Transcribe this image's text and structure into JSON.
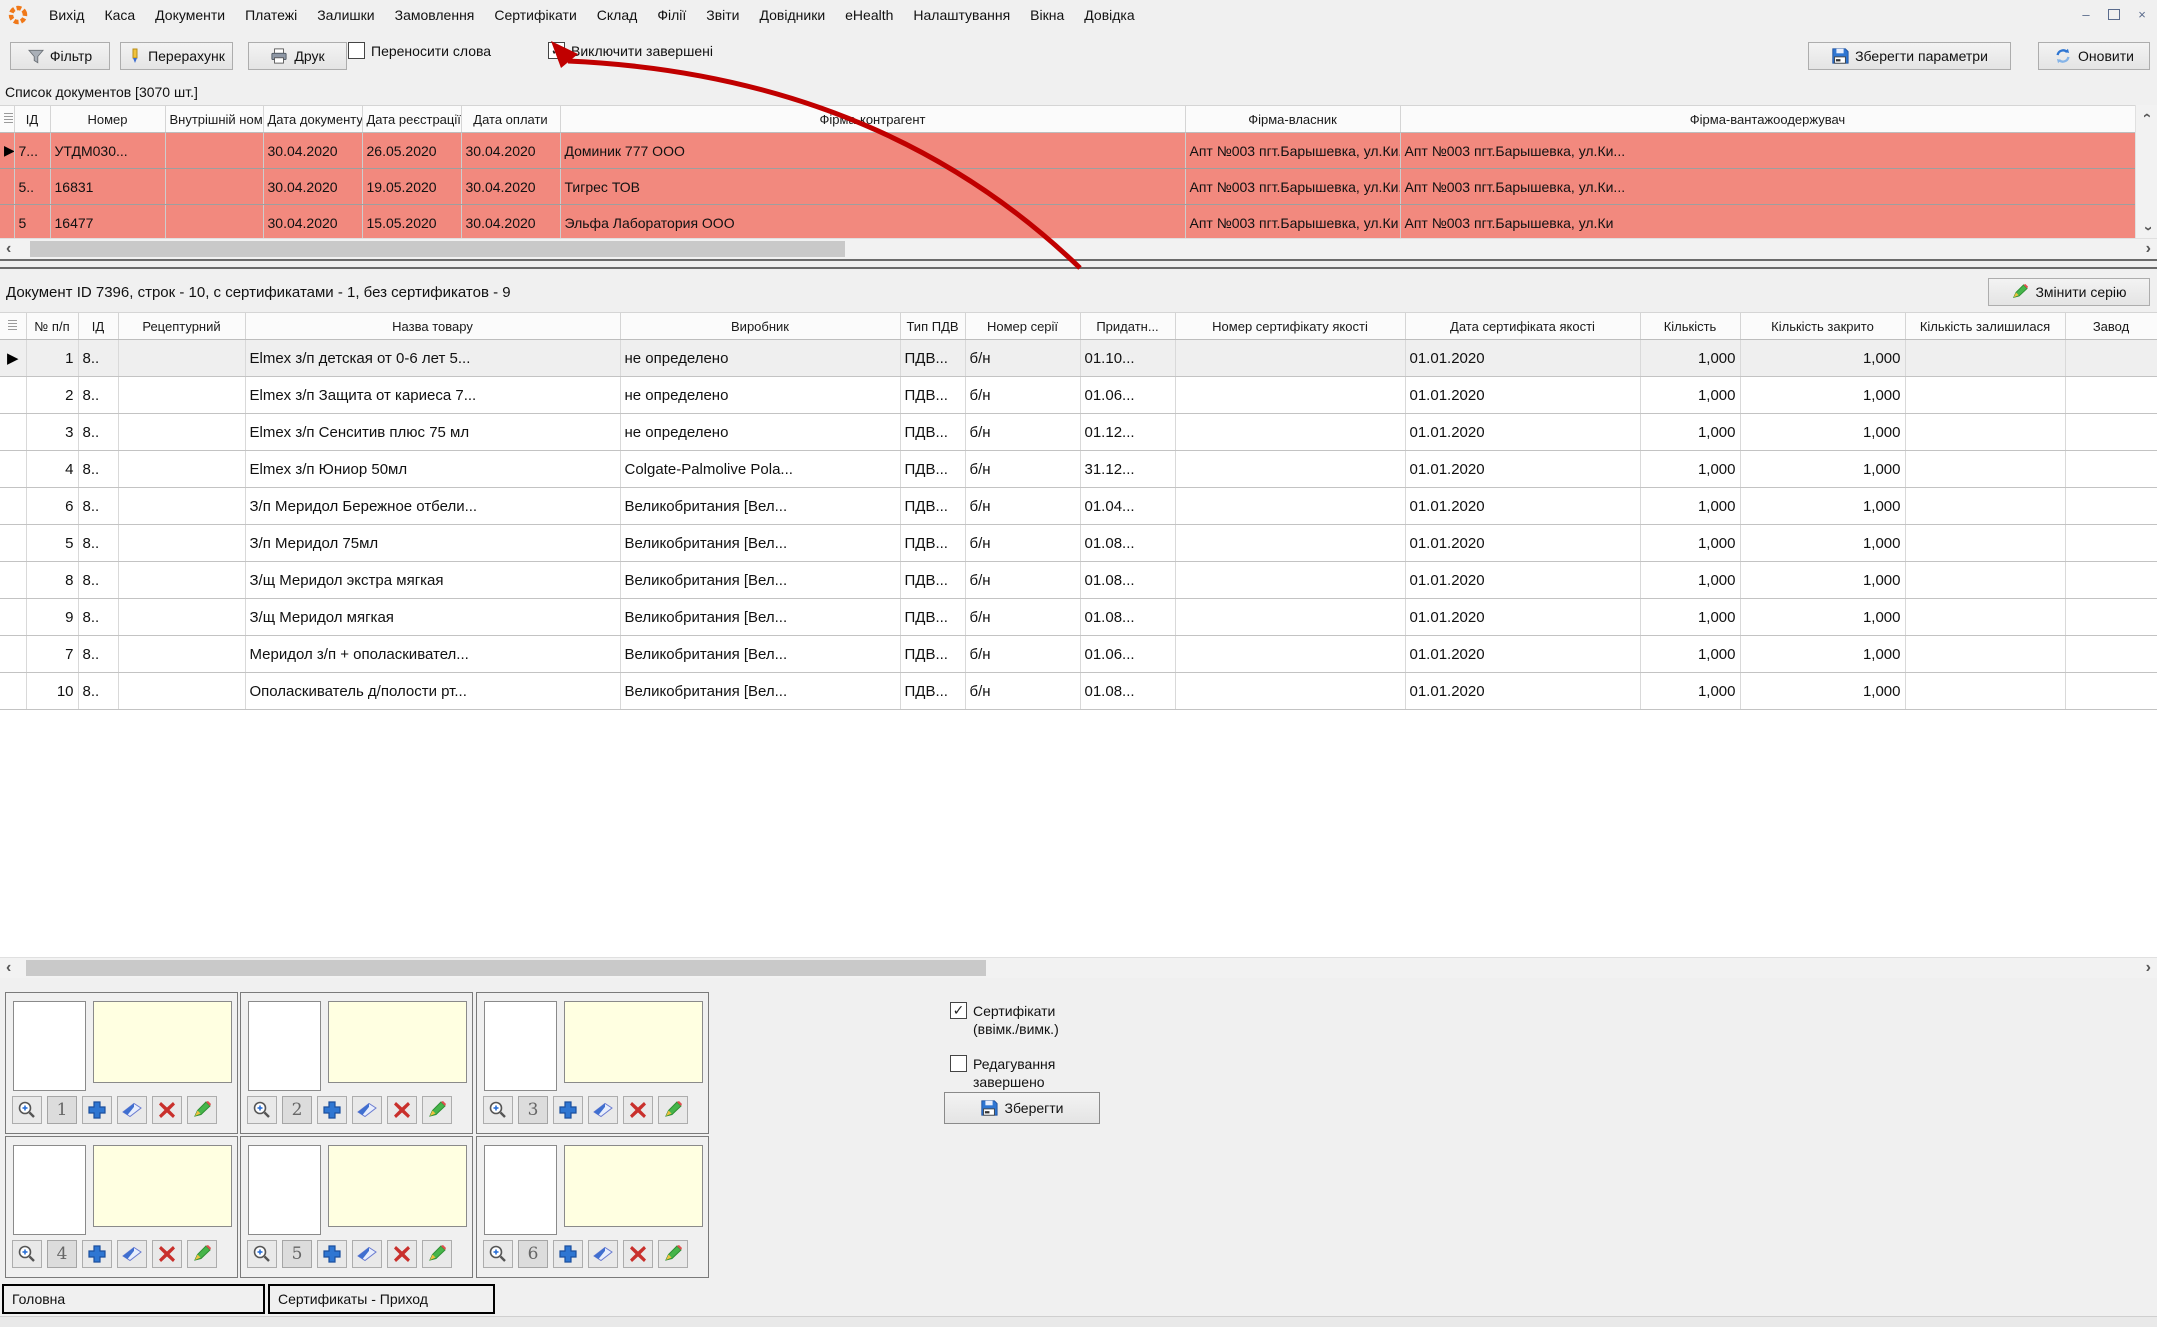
{
  "menu": {
    "items": [
      "Вихід",
      "Каса",
      "Документи",
      "Платежі",
      "Залишки",
      "Замовлення",
      "Сертифікати",
      "Склад",
      "Філії",
      "Звіти",
      "Довідники",
      "eHealth",
      "Налаштування",
      "Вікна",
      "Довідка"
    ]
  },
  "toolbar": {
    "filter": "Фільтр",
    "recalc": "Перерахунк",
    "print": "Друк",
    "wrap_words": "Переносити слова",
    "exclude_completed": "Виключити завершені",
    "save_params": "Зберегти параметри",
    "refresh": "Оновити"
  },
  "doc_list": {
    "title": "Список документов [3070 шт.]",
    "columns": [
      "",
      "ІД",
      "Номер",
      "Внутрішній номер",
      "Дата документу",
      "Дата реєстрації",
      "Дата оплати",
      "Фірма-контрагент",
      "Фірма-власник",
      "Фірма-вантажоодержувач"
    ],
    "rows": [
      {
        "selected": true,
        "cells": [
          "7...",
          "УТДМ030...",
          "",
          "30.04.2020",
          "26.05.2020",
          "30.04.2020",
          "Доминик 777 ООО",
          "Апт №003 пгт.Барышевка, ул.Ки...",
          "Апт №003 пгт.Барышевка, ул.Ки..."
        ]
      },
      {
        "selected": false,
        "cells": [
          "5..",
          "16831",
          "",
          "30.04.2020",
          "19.05.2020",
          "30.04.2020",
          "Тигрес ТОВ",
          "Апт №003 пгт.Барышевка, ул.Ки...",
          "Апт №003 пгт.Барышевка, ул.Ки..."
        ]
      },
      {
        "selected": false,
        "cells": [
          "5",
          "16477",
          "",
          "30.04.2020",
          "15.05.2020",
          "30.04.2020",
          "Эльфа Лаборатория ООО",
          "Апт №003 пгт.Барышевка, ул.Ки",
          "Апт №003 пгт.Барышевка, ул.Ки"
        ]
      }
    ]
  },
  "doc_info": {
    "summary": "Документ ID 7396, строк - 10, с сертификатами - 1, без сертификатов - 9",
    "change_series": "Змінити серію"
  },
  "items_table": {
    "columns": [
      "",
      "№ п/п",
      "ІД",
      "Рецептурний",
      "Назва товару",
      "Виробник",
      "Тип ПДВ",
      "Номер серії",
      "Придатн...",
      "Номер сертифікату якості",
      "Дата сертифіката якості",
      "Кількість",
      "Кількість закрито",
      "Кількість залишилася",
      "Завод"
    ],
    "rows": [
      {
        "selected": true,
        "cells": [
          "1",
          "8..",
          "",
          "Elmex з/п детская от 0-6 лет 5...",
          "не определено",
          "ПДВ...",
          "б/н",
          "01.10...",
          "",
          "01.01.2020",
          "1,000",
          "1,000",
          "",
          ""
        ]
      },
      {
        "selected": false,
        "cells": [
          "2",
          "8..",
          "",
          "Elmex з/п Защита от кариеса 7...",
          "не определено",
          "ПДВ...",
          "б/н",
          "01.06...",
          "",
          "01.01.2020",
          "1,000",
          "1,000",
          "",
          ""
        ]
      },
      {
        "selected": false,
        "cells": [
          "3",
          "8..",
          "",
          "Elmex з/п Сенситив плюс 75 мл",
          "не определено",
          "ПДВ...",
          "б/н",
          "01.12...",
          "",
          "01.01.2020",
          "1,000",
          "1,000",
          "",
          ""
        ]
      },
      {
        "selected": false,
        "cells": [
          "4",
          "8..",
          "",
          "Elmex з/п Юниор 50мл",
          "Colgate-Palmolive Pola...",
          "ПДВ...",
          "б/н",
          "31.12...",
          "",
          "01.01.2020",
          "1,000",
          "1,000",
          "",
          ""
        ]
      },
      {
        "selected": false,
        "cells": [
          "6",
          "8..",
          "",
          "З/п Меридол Бережное отбели...",
          "Великобритания [Вел...",
          "ПДВ...",
          "б/н",
          "01.04...",
          "",
          "01.01.2020",
          "1,000",
          "1,000",
          "",
          ""
        ]
      },
      {
        "selected": false,
        "cells": [
          "5",
          "8..",
          "",
          "З/п Меридол 75мл",
          "Великобритания [Вел...",
          "ПДВ...",
          "б/н",
          "01.08...",
          "",
          "01.01.2020",
          "1,000",
          "1,000",
          "",
          ""
        ]
      },
      {
        "selected": false,
        "cells": [
          "8",
          "8..",
          "",
          "З/щ Меридол экстра мягкая",
          "Великобритания [Вел...",
          "ПДВ...",
          "б/н",
          "01.08...",
          "",
          "01.01.2020",
          "1,000",
          "1,000",
          "",
          ""
        ]
      },
      {
        "selected": false,
        "cells": [
          "9",
          "8..",
          "",
          "З/щ Меридол мягкая",
          "Великобритания [Вел...",
          "ПДВ...",
          "б/н",
          "01.08...",
          "",
          "01.01.2020",
          "1,000",
          "1,000",
          "",
          ""
        ]
      },
      {
        "selected": false,
        "cells": [
          "7",
          "8..",
          "",
          "Меридол з/п + ополаскивател...",
          "Великобритания [Вел...",
          "ПДВ...",
          "б/н",
          "01.06...",
          "",
          "01.01.2020",
          "1,000",
          "1,000",
          "",
          ""
        ]
      },
      {
        "selected": false,
        "cells": [
          "10",
          "8..",
          "",
          "Ополаскиватель д/полости рт...",
          "Великобритания [Вел...",
          "ПДВ...",
          "б/н",
          "01.08...",
          "",
          "01.01.2020",
          "1,000",
          "1,000",
          "",
          ""
        ]
      }
    ]
  },
  "cert_panels": {
    "numbers": [
      "1",
      "2",
      "3",
      "4",
      "5",
      "6"
    ]
  },
  "cert_controls": {
    "certificates": "Сертифікати\n(ввімк./вимк.)",
    "editing": "Редагування\nзавершено",
    "save": "Зберегти"
  },
  "tabs": {
    "items": [
      "Головна",
      "Сертификаты - Приход"
    ]
  },
  "colors": {
    "row_highlight": "#f2897e",
    "annotation": "#c00000",
    "note_bg": "#ffffe1"
  }
}
